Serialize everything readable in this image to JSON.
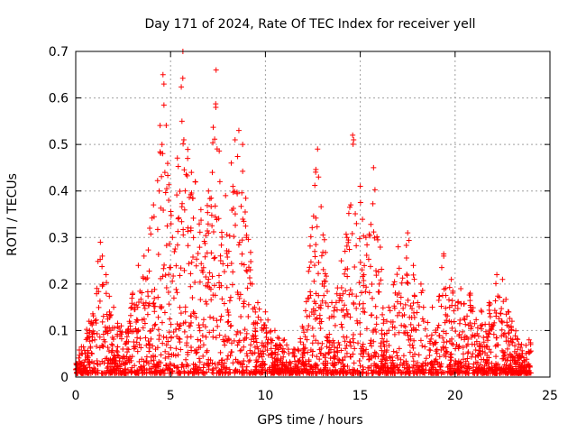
{
  "chart_data": {
    "type": "scatter",
    "title": "Day 171 of 2024, Rate Of TEC Index for receiver yell",
    "xlabel": "GPS time / hours",
    "ylabel": "ROTI / TECUs",
    "xlim": [
      0,
      25
    ],
    "ylim": [
      0,
      0.7
    ],
    "x_ticks": [
      0,
      5,
      10,
      15,
      20,
      25
    ],
    "x_tick_labels": [
      "0",
      "5",
      "10",
      "15",
      "20",
      "25"
    ],
    "y_ticks": [
      0,
      0.1,
      0.2,
      0.3,
      0.4,
      0.5,
      0.6,
      0.7
    ],
    "y_tick_labels": [
      "0",
      "0.1",
      "0.2",
      "0.3",
      "0.4",
      "0.5",
      "0.6",
      "0.7"
    ],
    "grid": true,
    "marker": "+",
    "color": "#ff0000",
    "series": [
      {
        "name": "ROTI",
        "points": [
          [
            0.2,
            0.03
          ],
          [
            0.5,
            0.05
          ],
          [
            0.7,
            0.12
          ],
          [
            1.0,
            0.08
          ],
          [
            1.3,
            0.29
          ],
          [
            1.4,
            0.26
          ],
          [
            1.6,
            0.22
          ],
          [
            2.0,
            0.15
          ],
          [
            2.4,
            0.11
          ],
          [
            3.0,
            0.18
          ],
          [
            3.3,
            0.24
          ],
          [
            3.6,
            0.26
          ],
          [
            3.9,
            0.32
          ],
          [
            4.1,
            0.37
          ],
          [
            4.4,
            0.4
          ],
          [
            4.55,
            0.5
          ],
          [
            4.6,
            0.65
          ],
          [
            4.65,
            0.63
          ],
          [
            4.7,
            0.44
          ],
          [
            4.9,
            0.38
          ],
          [
            5.1,
            0.3
          ],
          [
            5.4,
            0.34
          ],
          [
            5.6,
            0.55
          ],
          [
            5.65,
            0.7
          ],
          [
            5.7,
            0.51
          ],
          [
            5.9,
            0.47
          ],
          [
            6.1,
            0.44
          ],
          [
            6.3,
            0.42
          ],
          [
            6.6,
            0.36
          ],
          [
            7.0,
            0.4
          ],
          [
            7.2,
            0.44
          ],
          [
            7.4,
            0.66
          ],
          [
            7.6,
            0.42
          ],
          [
            7.9,
            0.39
          ],
          [
            8.2,
            0.46
          ],
          [
            8.4,
            0.51
          ],
          [
            8.6,
            0.53
          ],
          [
            8.8,
            0.5
          ],
          [
            9.0,
            0.3
          ],
          [
            9.3,
            0.2
          ],
          [
            9.6,
            0.16
          ],
          [
            10.0,
            0.14
          ],
          [
            10.5,
            0.1
          ],
          [
            11.0,
            0.08
          ],
          [
            11.5,
            0.06
          ],
          [
            12.0,
            0.07
          ],
          [
            12.3,
            0.17
          ],
          [
            12.6,
            0.27
          ],
          [
            12.75,
            0.49
          ],
          [
            12.8,
            0.43
          ],
          [
            13.0,
            0.2
          ],
          [
            13.5,
            0.16
          ],
          [
            14.0,
            0.25
          ],
          [
            14.3,
            0.3
          ],
          [
            14.5,
            0.37
          ],
          [
            14.6,
            0.52
          ],
          [
            14.65,
            0.51
          ],
          [
            14.8,
            0.33
          ],
          [
            15.0,
            0.41
          ],
          [
            15.3,
            0.3
          ],
          [
            15.7,
            0.45
          ],
          [
            16.0,
            0.2
          ],
          [
            16.5,
            0.15
          ],
          [
            17.0,
            0.28
          ],
          [
            17.5,
            0.31
          ],
          [
            17.8,
            0.24
          ],
          [
            18.2,
            0.2
          ],
          [
            18.8,
            0.15
          ],
          [
            19.4,
            0.26
          ],
          [
            19.8,
            0.21
          ],
          [
            20.3,
            0.19
          ],
          [
            20.8,
            0.18
          ],
          [
            21.4,
            0.14
          ],
          [
            21.8,
            0.16
          ],
          [
            22.2,
            0.22
          ],
          [
            22.5,
            0.21
          ],
          [
            23.0,
            0.12
          ],
          [
            23.5,
            0.07
          ],
          [
            23.9,
            0.08
          ]
        ]
      }
    ]
  }
}
